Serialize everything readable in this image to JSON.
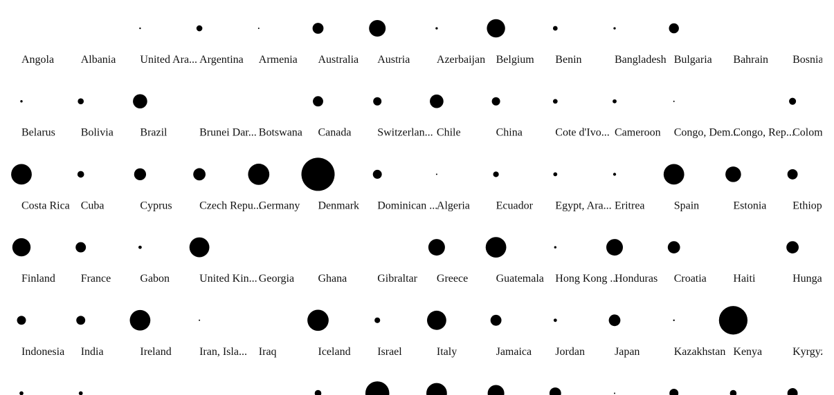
{
  "chart_data": {
    "type": "scatter",
    "title": "",
    "xlabel": "",
    "ylabel": "",
    "marker_color": "#000000",
    "label_color": "#111111",
    "background": "#ffffff",
    "grid": false,
    "legend": "none",
    "size_encoding": "relative radius of one dot per country",
    "items": [
      {
        "label": "Angola",
        "value": 0.0
      },
      {
        "label": "Albania",
        "value": 0.0
      },
      {
        "label": "United Ara...",
        "value": 0.05
      },
      {
        "label": "Argentina",
        "value": 0.18
      },
      {
        "label": "Armenia",
        "value": 0.04
      },
      {
        "label": "Australia",
        "value": 0.33
      },
      {
        "label": "Austria",
        "value": 0.5
      },
      {
        "label": "Azerbaijan",
        "value": 0.07
      },
      {
        "label": "Belgium",
        "value": 0.55
      },
      {
        "label": "Benin",
        "value": 0.14
      },
      {
        "label": "Bangladesh",
        "value": 0.07
      },
      {
        "label": "Bulgaria",
        "value": 0.3
      },
      {
        "label": "Bahrain",
        "value": 0.0
      },
      {
        "label": "Bosnia",
        "value": 0.0
      },
      {
        "label": "Belarus",
        "value": 0.07
      },
      {
        "label": "Bolivia",
        "value": 0.18
      },
      {
        "label": "Brazil",
        "value": 0.43
      },
      {
        "label": "Brunei Dar...",
        "value": 0.0
      },
      {
        "label": "Botswana",
        "value": 0.0
      },
      {
        "label": "Canada",
        "value": 0.31
      },
      {
        "label": "Switzerlan...",
        "value": 0.25
      },
      {
        "label": "Chile",
        "value": 0.41
      },
      {
        "label": "China",
        "value": 0.25
      },
      {
        "label": "Cote d'Ivo...",
        "value": 0.14
      },
      {
        "label": "Cameroon",
        "value": 0.12
      },
      {
        "label": "Congo, Dem...",
        "value": 0.04
      },
      {
        "label": "Congo, Rep...",
        "value": 0.0
      },
      {
        "label": "Colom",
        "value": 0.21
      },
      {
        "label": "Costa Rica",
        "value": 0.62
      },
      {
        "label": "Cuba",
        "value": 0.2
      },
      {
        "label": "Cyprus",
        "value": 0.36
      },
      {
        "label": "Czech Repu...",
        "value": 0.37
      },
      {
        "label": "Germany",
        "value": 0.64
      },
      {
        "label": "Denmark",
        "value": 1.0
      },
      {
        "label": "Dominican ...",
        "value": 0.27
      },
      {
        "label": "Algeria",
        "value": 0.04
      },
      {
        "label": "Ecuador",
        "value": 0.17
      },
      {
        "label": "Egypt, Ara...",
        "value": 0.12
      },
      {
        "label": "Eritrea",
        "value": 0.09
      },
      {
        "label": "Spain",
        "value": 0.62
      },
      {
        "label": "Estonia",
        "value": 0.47
      },
      {
        "label": "Ethiop",
        "value": 0.31
      },
      {
        "label": "Finland",
        "value": 0.55
      },
      {
        "label": "France",
        "value": 0.31
      },
      {
        "label": "Gabon",
        "value": 0.1
      },
      {
        "label": "United Kin...",
        "value": 0.6
      },
      {
        "label": "Georgia",
        "value": 0.0
      },
      {
        "label": "Ghana",
        "value": 0.0
      },
      {
        "label": "Gibraltar",
        "value": 0.0
      },
      {
        "label": "Greece",
        "value": 0.5
      },
      {
        "label": "Guatemala",
        "value": 0.62
      },
      {
        "label": "Hong Kong ...",
        "value": 0.07
      },
      {
        "label": "Honduras",
        "value": 0.5
      },
      {
        "label": "Croatia",
        "value": 0.37
      },
      {
        "label": "Haiti",
        "value": 0.0
      },
      {
        "label": "Hunga",
        "value": 0.37
      },
      {
        "label": "Indonesia",
        "value": 0.27
      },
      {
        "label": "India",
        "value": 0.27
      },
      {
        "label": "Ireland",
        "value": 0.62
      },
      {
        "label": "Iran, Isla...",
        "value": 0.04
      },
      {
        "label": "Iraq",
        "value": 0.0
      },
      {
        "label": "Iceland",
        "value": 0.64
      },
      {
        "label": "Israel",
        "value": 0.17
      },
      {
        "label": "Italy",
        "value": 0.58
      },
      {
        "label": "Jamaica",
        "value": 0.33
      },
      {
        "label": "Jordan",
        "value": 0.1
      },
      {
        "label": "Japan",
        "value": 0.35
      },
      {
        "label": "Kazakhstan",
        "value": 0.05
      },
      {
        "label": "Kenya",
        "value": 0.86
      },
      {
        "label": "Kyrgyz",
        "value": 0.0
      },
      {
        "label": "",
        "value": 0.12
      },
      {
        "label": "",
        "value": 0.12
      },
      {
        "label": "",
        "value": 0.0
      },
      {
        "label": "",
        "value": 0.0
      },
      {
        "label": "",
        "value": 0.0
      },
      {
        "label": "",
        "value": 0.2
      },
      {
        "label": "",
        "value": 0.72
      },
      {
        "label": "",
        "value": 0.62
      },
      {
        "label": "",
        "value": 0.5
      },
      {
        "label": "",
        "value": 0.35
      },
      {
        "label": "",
        "value": 0.04
      },
      {
        "label": "",
        "value": 0.27
      },
      {
        "label": "",
        "value": 0.2
      },
      {
        "label": "",
        "value": 0.31
      }
    ]
  }
}
